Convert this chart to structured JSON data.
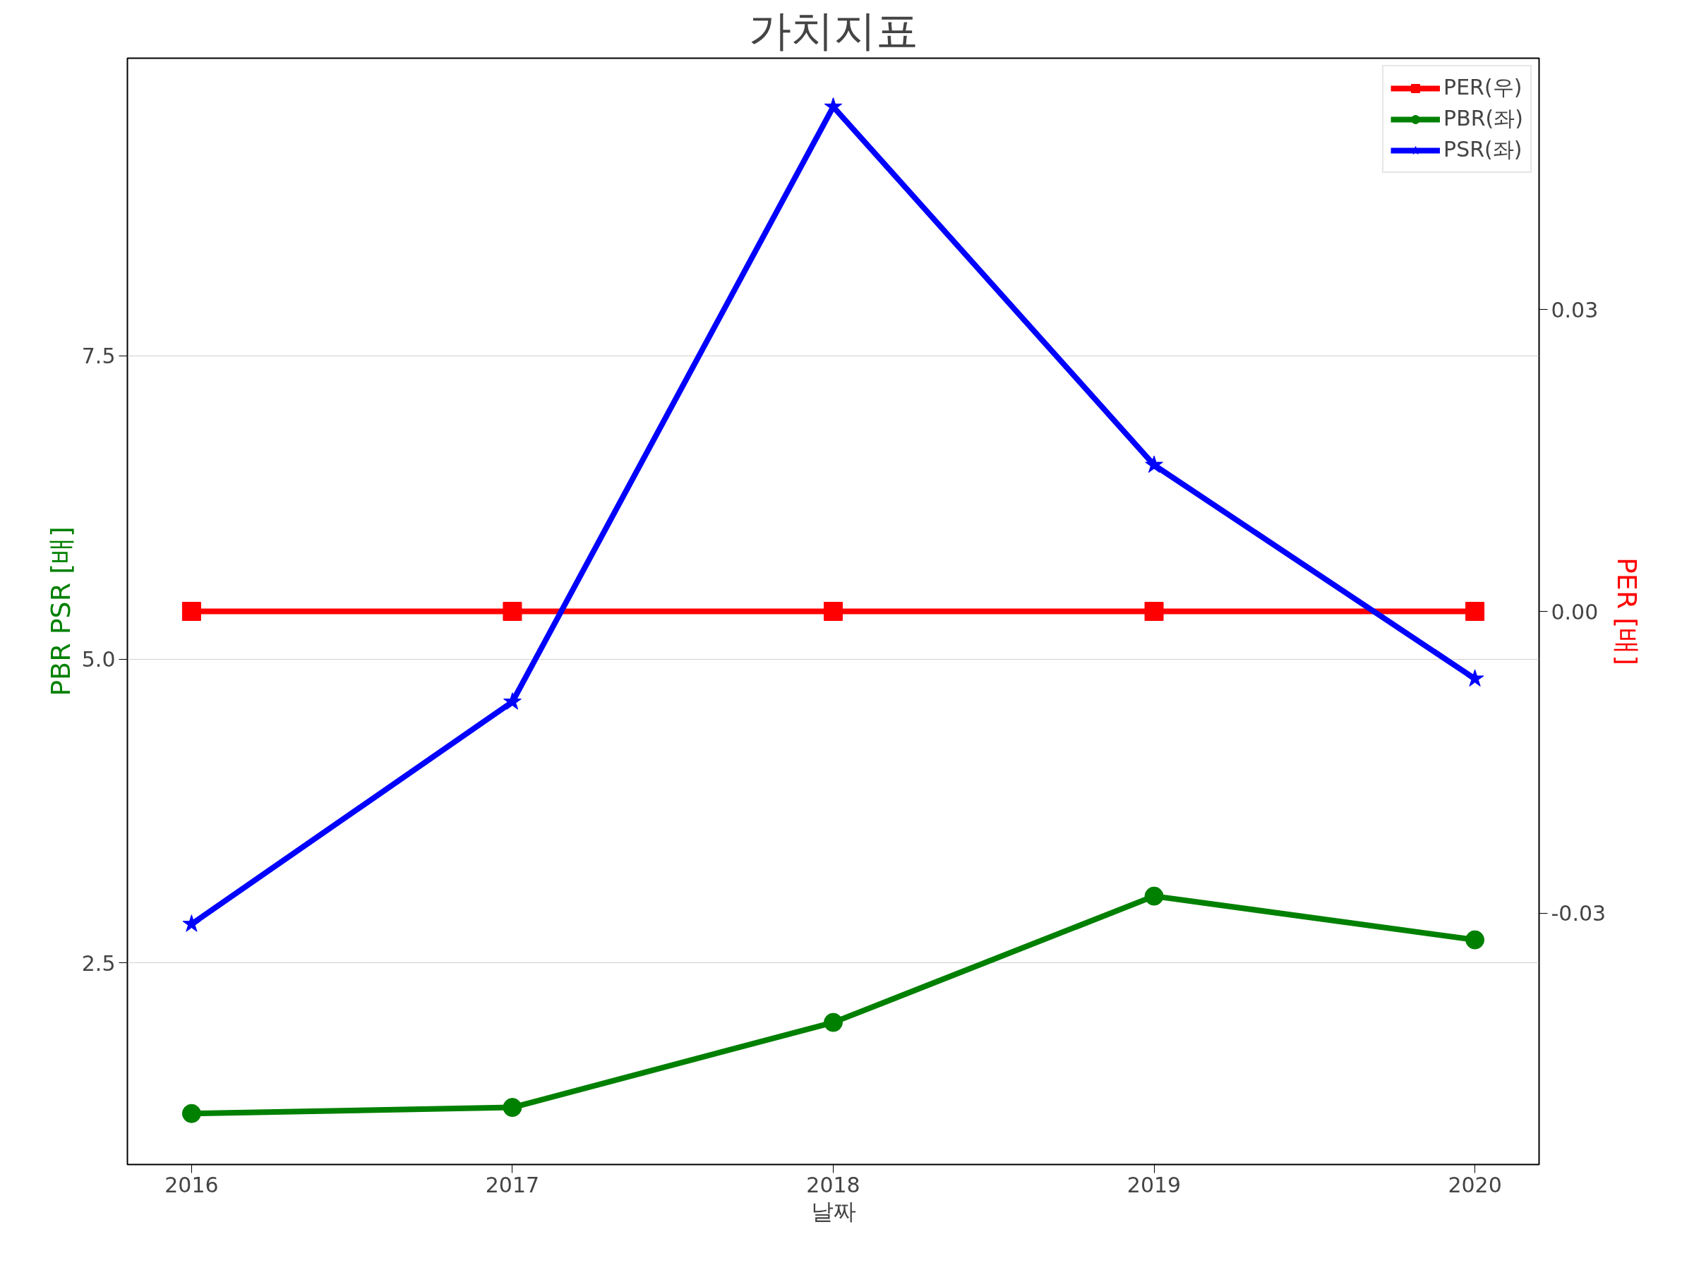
{
  "chart_data": {
    "type": "line",
    "title": "가치지표",
    "xlabel": "날짜",
    "ylabel": "PBR PSR [배]",
    "y2label": "PER [배]",
    "x": [
      2016,
      2017,
      2018,
      2019,
      2020
    ],
    "series": [
      {
        "name": "PER(우)",
        "color": "#ff0000",
        "marker": "square",
        "axis": "y2",
        "values": [
          0,
          0,
          0,
          0,
          0
        ]
      },
      {
        "name": "PBR(좌)",
        "color": "#008000",
        "marker": "circle",
        "values": [
          1.26,
          1.31,
          2.01,
          3.05,
          2.69
        ]
      },
      {
        "name": "PSR(좌)",
        "color": "#0000ff",
        "marker": "star",
        "values": [
          2.82,
          4.65,
          9.55,
          6.6,
          4.84
        ]
      }
    ],
    "xlim": [
      2015.8,
      2020.2
    ],
    "xticks": [
      2016,
      2017,
      2018,
      2019,
      2020
    ],
    "ylim": [
      0.84,
      9.95
    ],
    "yticks": [
      {
        "value": 2.5,
        "label": "2.5"
      },
      {
        "value": 5.0,
        "label": "5.0"
      },
      {
        "value": 7.5,
        "label": "7.5"
      }
    ],
    "y2lim": [
      -0.055,
      0.055
    ],
    "y2ticks": [
      {
        "value": -0.03,
        "label": "-0.03"
      },
      {
        "value": 0,
        "label": "0.00"
      },
      {
        "value": 0.03,
        "label": "0.03"
      }
    ],
    "grid": "y",
    "legend": "top right",
    "line_style": "solid"
  }
}
